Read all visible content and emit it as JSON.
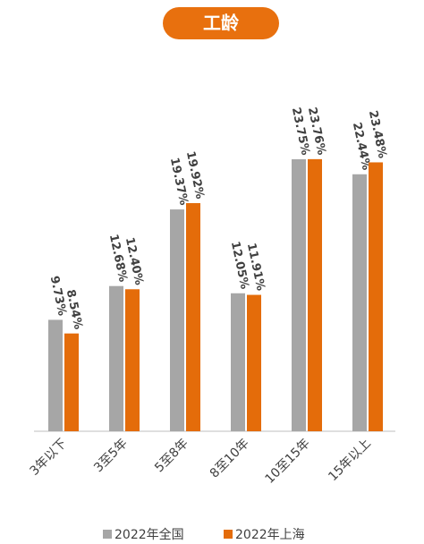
{
  "chart_data": {
    "type": "bar",
    "title": "工龄",
    "categories": [
      "3年以下",
      "3至5年",
      "5至8年",
      "8至10年",
      "10至15年",
      "15年以上"
    ],
    "series": [
      {
        "name": "2022年全国",
        "color": "#a6a6a6",
        "values": [
          9.73,
          12.68,
          19.37,
          12.05,
          23.75,
          22.44
        ],
        "value_labels": [
          "9.73%",
          "12.68%",
          "19.37%",
          "12.05%",
          "23.75%",
          "22.44%"
        ]
      },
      {
        "name": "2022年上海",
        "color": "#e46c0a",
        "values": [
          8.54,
          12.4,
          19.92,
          11.91,
          23.76,
          23.48
        ],
        "value_labels": [
          "8.54%",
          "12.40%",
          "19.92%",
          "11.91%",
          "23.76%",
          "23.48%"
        ]
      }
    ],
    "legend": "bottom"
  }
}
